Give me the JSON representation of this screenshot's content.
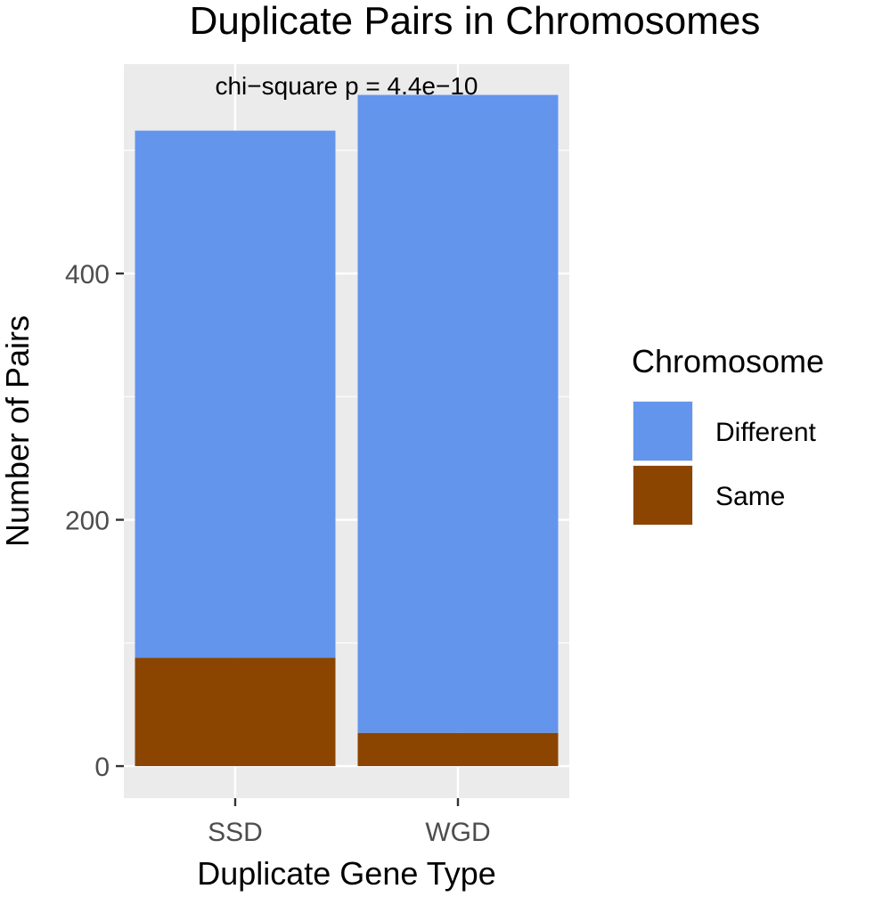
{
  "chart_data": {
    "type": "bar",
    "stacked": true,
    "title": "Duplicate Pairs in Chromosomes",
    "annotation": "chi−square p = 4.4e−10",
    "xlabel": "Duplicate Gene Type",
    "ylabel": "Number of Pairs",
    "categories": [
      "SSD",
      "WGD"
    ],
    "series": [
      {
        "name": "Same",
        "values": [
          88,
          27
        ],
        "color": "#8B4500"
      },
      {
        "name": "Different",
        "values": [
          428,
          518
        ],
        "color": "#6495ED"
      }
    ],
    "yticks": [
      0,
      200,
      400
    ],
    "ylim": [
      -26,
      570
    ],
    "grid": true,
    "legend": {
      "title": "Chromosome",
      "position": "right",
      "entries": [
        "Different",
        "Same"
      ]
    }
  }
}
